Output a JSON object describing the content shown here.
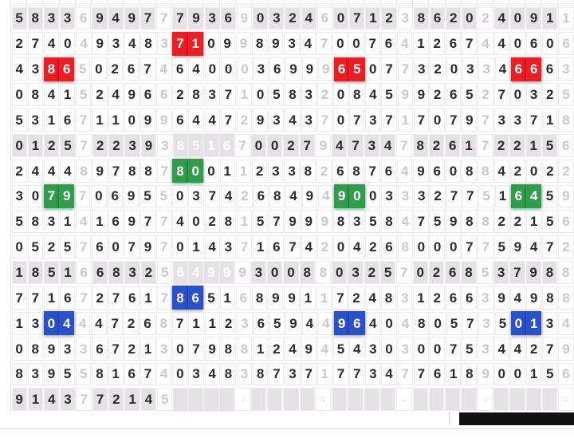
{
  "colors": {
    "red": "#ee1c23",
    "green": "#2f9e4c",
    "blue": "#2b50cb",
    "pending_blue": "#3f97d4",
    "shaded_row_bg": "#e4e2e4",
    "digit": "#2b2b2b",
    "separator_digit": "#c9c9c9",
    "bottom_bar": "#121212"
  },
  "grid": {
    "groups_per_row": 7,
    "digits_per_group": 4,
    "rows": [
      {
        "shaded": true,
        "groups": [
          {
            "digits": "5833",
            "sep": "6"
          },
          {
            "digits": "9497",
            "sep": "7"
          },
          {
            "digits": "7936",
            "sep": "9"
          },
          {
            "digits": "0324",
            "sep": "6"
          },
          {
            "digits": "0712",
            "sep": "3"
          },
          {
            "digits": "8620",
            "sep": "2"
          },
          {
            "digits": "4091",
            "sep": "1"
          }
        ]
      },
      {
        "shaded": false,
        "groups": [
          {
            "digits": "2740",
            "sep": "4"
          },
          {
            "digits": "9348",
            "sep": "3"
          },
          {
            "digits": "7109",
            "sep": "9",
            "marks": "rr.."
          },
          {
            "digits": "8934",
            "sep": "7"
          },
          {
            "digits": "0076",
            "sep": "4"
          },
          {
            "digits": "1267",
            "sep": "4"
          },
          {
            "digits": "4060",
            "sep": "6"
          }
        ]
      },
      {
        "shaded": false,
        "groups": [
          {
            "digits": "4386",
            "sep": "5",
            "marks": "..rr"
          },
          {
            "digits": "0267",
            "sep": "4"
          },
          {
            "digits": "6400",
            "sep": "0"
          },
          {
            "digits": "3699",
            "sep": "9"
          },
          {
            "digits": "6507",
            "sep": "7",
            "marks": "rr.."
          },
          {
            "digits": "3203",
            "sep": "3"
          },
          {
            "digits": "4666",
            "sep": "3",
            "marks": ".rr."
          }
        ]
      },
      {
        "shaded": false,
        "groups": [
          {
            "digits": "0841",
            "sep": "5"
          },
          {
            "digits": "2496",
            "sep": "6"
          },
          {
            "digits": "2837",
            "sep": "1"
          },
          {
            "digits": "0583",
            "sep": "2"
          },
          {
            "digits": "0845",
            "sep": "9"
          },
          {
            "digits": "9265",
            "sep": "2"
          },
          {
            "digits": "7032",
            "sep": "5"
          }
        ]
      },
      {
        "shaded": false,
        "groups": [
          {
            "digits": "5316",
            "sep": "7"
          },
          {
            "digits": "1109",
            "sep": "9"
          },
          {
            "digits": "6447",
            "sep": "2"
          },
          {
            "digits": "9343",
            "sep": "7"
          },
          {
            "digits": "0737",
            "sep": "1"
          },
          {
            "digits": "7079",
            "sep": "7"
          },
          {
            "digits": "3371",
            "sep": "8"
          }
        ]
      },
      {
        "shaded": true,
        "groups": [
          {
            "digits": "0125",
            "sep": "7"
          },
          {
            "digits": "2239",
            "sep": "3"
          },
          {
            "digits": "8516",
            "sep": "7",
            "marks": "rrrr"
          },
          {
            "digits": "0027",
            "sep": "9"
          },
          {
            "digits": "4734",
            "sep": "7"
          },
          {
            "digits": "8261",
            "sep": "7"
          },
          {
            "digits": "2215",
            "sep": "6"
          }
        ]
      },
      {
        "shaded": false,
        "groups": [
          {
            "digits": "2444",
            "sep": "8"
          },
          {
            "digits": "9788",
            "sep": "7"
          },
          {
            "digits": "8001",
            "sep": "1",
            "marks": "gg.."
          },
          {
            "digits": "2338",
            "sep": "2"
          },
          {
            "digits": "6876",
            "sep": "4"
          },
          {
            "digits": "9608",
            "sep": "8"
          },
          {
            "digits": "4202",
            "sep": "2"
          }
        ]
      },
      {
        "shaded": false,
        "groups": [
          {
            "digits": "3079",
            "sep": "7",
            "marks": "..gg"
          },
          {
            "digits": "0695",
            "sep": "5"
          },
          {
            "digits": "0374",
            "sep": "2"
          },
          {
            "digits": "6849",
            "sep": "4"
          },
          {
            "digits": "9003",
            "sep": "3",
            "marks": "gg.."
          },
          {
            "digits": "3277",
            "sep": "5"
          },
          {
            "digits": "1645",
            "sep": "9",
            "marks": ".gg."
          }
        ]
      },
      {
        "shaded": false,
        "groups": [
          {
            "digits": "5831",
            "sep": "4"
          },
          {
            "digits": "1697",
            "sep": "7"
          },
          {
            "digits": "4028",
            "sep": "1"
          },
          {
            "digits": "5799",
            "sep": "9"
          },
          {
            "digits": "8358",
            "sep": "4"
          },
          {
            "digits": "7598",
            "sep": "8"
          },
          {
            "digits": "2215",
            "sep": "6"
          }
        ]
      },
      {
        "shaded": false,
        "groups": [
          {
            "digits": "0525",
            "sep": "7"
          },
          {
            "digits": "6079",
            "sep": "7"
          },
          {
            "digits": "0143",
            "sep": "7"
          },
          {
            "digits": "1674",
            "sep": "2"
          },
          {
            "digits": "0426",
            "sep": "8"
          },
          {
            "digits": "0007",
            "sep": "7"
          },
          {
            "digits": "5947",
            "sep": "2"
          }
        ]
      },
      {
        "shaded": true,
        "groups": [
          {
            "digits": "1851",
            "sep": "6"
          },
          {
            "digits": "6832",
            "sep": "5"
          },
          {
            "digits": "6499",
            "sep": "9",
            "marks": "gggg"
          },
          {
            "digits": "3008",
            "sep": "8"
          },
          {
            "digits": "0325",
            "sep": "7"
          },
          {
            "digits": "0268",
            "sep": "5"
          },
          {
            "digits": "3798",
            "sep": "8"
          }
        ]
      },
      {
        "shaded": false,
        "groups": [
          {
            "digits": "7716",
            "sep": "7"
          },
          {
            "digits": "2761",
            "sep": "7"
          },
          {
            "digits": "8651",
            "sep": "6",
            "marks": "bb.."
          },
          {
            "digits": "8991",
            "sep": "1"
          },
          {
            "digits": "7248",
            "sep": "3"
          },
          {
            "digits": "1266",
            "sep": "3"
          },
          {
            "digits": "9498",
            "sep": "8"
          }
        ]
      },
      {
        "shaded": false,
        "groups": [
          {
            "digits": "1304",
            "sep": "4",
            "marks": "..bb"
          },
          {
            "digits": "4726",
            "sep": "8"
          },
          {
            "digits": "7112",
            "sep": "3"
          },
          {
            "digits": "6594",
            "sep": "4"
          },
          {
            "digits": "9640",
            "sep": "4",
            "marks": "bb.."
          },
          {
            "digits": "8057",
            "sep": "3"
          },
          {
            "digits": "5013",
            "sep": "4",
            "marks": ".bb."
          }
        ]
      },
      {
        "shaded": false,
        "groups": [
          {
            "digits": "0893",
            "sep": "3"
          },
          {
            "digits": "6721",
            "sep": "3"
          },
          {
            "digits": "0798",
            "sep": "8"
          },
          {
            "digits": "1249",
            "sep": "4"
          },
          {
            "digits": "5430",
            "sep": "3"
          },
          {
            "digits": "0075",
            "sep": "3"
          },
          {
            "digits": "4427",
            "sep": "9"
          }
        ]
      },
      {
        "shaded": false,
        "groups": [
          {
            "digits": "8395",
            "sep": "5"
          },
          {
            "digits": "8167",
            "sep": "4"
          },
          {
            "digits": "0348",
            "sep": "3"
          },
          {
            "digits": "8737",
            "sep": "1"
          },
          {
            "digits": "7734",
            "sep": "7"
          },
          {
            "digits": "7618",
            "sep": "9"
          },
          {
            "digits": "0015",
            "sep": "6"
          }
        ]
      },
      {
        "shaded": true,
        "groups": [
          {
            "digits": "9143",
            "sep": "7"
          },
          {
            "digits": "7214",
            "sep": "5"
          },
          {
            "digits": "",
            "sep": ".",
            "marks": "cccc"
          },
          {
            "digits": "",
            "sep": "."
          },
          {
            "digits": "",
            "sep": "."
          },
          {
            "digits": "",
            "sep": "."
          },
          {
            "digits": "",
            "sep": "."
          }
        ]
      }
    ]
  }
}
